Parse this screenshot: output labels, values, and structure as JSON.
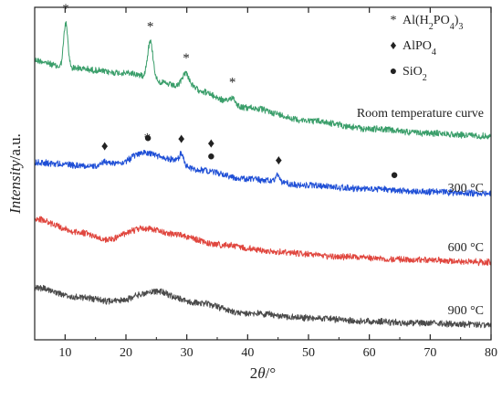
{
  "chart_data": {
    "type": "line",
    "xlabel_parts": [
      "2",
      "θ",
      "/°"
    ],
    "ylabel_parts": [
      "Intensity",
      "/a.u."
    ],
    "xlim": [
      5,
      80
    ],
    "xticks": [
      "10",
      "20",
      "30",
      "40",
      "50",
      "60",
      "70",
      "80"
    ],
    "yticks_shown": false,
    "grid": false,
    "legend": {
      "placement": "top-right",
      "entries": [
        {
          "symbol": "*",
          "name_parts": [
            "Al(H",
            "2",
            "PO",
            "4",
            ")",
            "3"
          ]
        },
        {
          "symbol": "♦",
          "name_parts": [
            "AlPO",
            "4"
          ]
        },
        {
          "symbol": "●",
          "name_parts": [
            "SiO",
            "2"
          ]
        }
      ]
    },
    "series": [
      {
        "name": "Room temperature curve",
        "color": "#3a9e6a",
        "baseline": [
          [
            5,
            66
          ],
          [
            10,
            74
          ],
          [
            20,
            80
          ],
          [
            30,
            96
          ],
          [
            40,
            118
          ],
          [
            50,
            132
          ],
          [
            60,
            141
          ],
          [
            70,
            146
          ],
          [
            80,
            149
          ]
        ],
        "peaks": [
          {
            "x": 10.1,
            "height": 48,
            "width": 0.35
          },
          {
            "x": 24.0,
            "height": 40,
            "width": 0.45
          },
          {
            "x": 29.8,
            "height": 16,
            "width": 0.6
          },
          {
            "x": 37.5,
            "height": 8,
            "width": 0.5
          }
        ],
        "noise": 4
      },
      {
        "name": "300 °C",
        "color": "#1f4fd6",
        "baseline": [
          [
            5,
            178
          ],
          [
            15,
            182
          ],
          [
            19,
            178
          ],
          [
            23,
            167
          ],
          [
            27,
            174
          ],
          [
            32,
            186
          ],
          [
            40,
            196
          ],
          [
            50,
            203
          ],
          [
            60,
            207
          ],
          [
            70,
            210
          ],
          [
            80,
            212
          ]
        ],
        "peaks": [
          {
            "x": 16.5,
            "height": 4,
            "width": 0.4
          },
          {
            "x": 29.1,
            "height": 10,
            "width": 0.35
          },
          {
            "x": 45.0,
            "height": 8,
            "width": 0.3
          }
        ],
        "noise": 4
      },
      {
        "name": "600 °C",
        "color": "#e0463e",
        "baseline": [
          [
            5,
            240
          ],
          [
            12,
            254
          ],
          [
            17,
            262
          ],
          [
            23,
            250
          ],
          [
            28,
            256
          ],
          [
            35,
            268
          ],
          [
            45,
            276
          ],
          [
            55,
            281
          ],
          [
            65,
            284
          ],
          [
            80,
            287
          ]
        ],
        "peaks": [],
        "noise": 4
      },
      {
        "name": "900 °C",
        "color": "#4a4a4a",
        "baseline": [
          [
            5,
            315
          ],
          [
            12,
            325
          ],
          [
            18,
            330
          ],
          [
            25,
            319
          ],
          [
            31,
            331
          ],
          [
            40,
            343
          ],
          [
            50,
            348
          ],
          [
            60,
            352
          ],
          [
            70,
            354
          ],
          [
            80,
            356
          ]
        ],
        "peaks": [],
        "noise": 4
      }
    ],
    "curve_labels": [
      {
        "series": "Room temperature curve",
        "text": "Room temperature curve"
      },
      {
        "series": "300 °C",
        "text": "300 °C"
      },
      {
        "series": "600 °C",
        "text": "600 °C"
      },
      {
        "series": "900 °C",
        "text": "900 °C"
      }
    ],
    "markers": [
      {
        "symbol": "*",
        "x": 10.1,
        "series": "Room temperature curve"
      },
      {
        "symbol": "*",
        "x": 24.0,
        "series": "Room temperature curve"
      },
      {
        "symbol": "*",
        "x": 29.9,
        "series": "Room temperature curve"
      },
      {
        "symbol": "*",
        "x": 37.5,
        "series": "Room temperature curve"
      },
      {
        "symbol": "♦",
        "x": 16.5,
        "series": "300 °C"
      },
      {
        "symbol": "*",
        "x": 23.5,
        "series": "300 °C"
      },
      {
        "symbol": "●",
        "x": 23.6,
        "series": "300 °C"
      },
      {
        "symbol": "♦",
        "x": 29.1,
        "series": "300 °C"
      },
      {
        "symbol": "●",
        "x": 34.0,
        "series": "300 °C"
      },
      {
        "symbol": "♦",
        "x": 34.0,
        "series": "300 °C"
      },
      {
        "symbol": "♦",
        "x": 45.1,
        "series": "300 °C"
      },
      {
        "symbol": "●",
        "x": 64.1,
        "series": "300 °C"
      }
    ]
  }
}
